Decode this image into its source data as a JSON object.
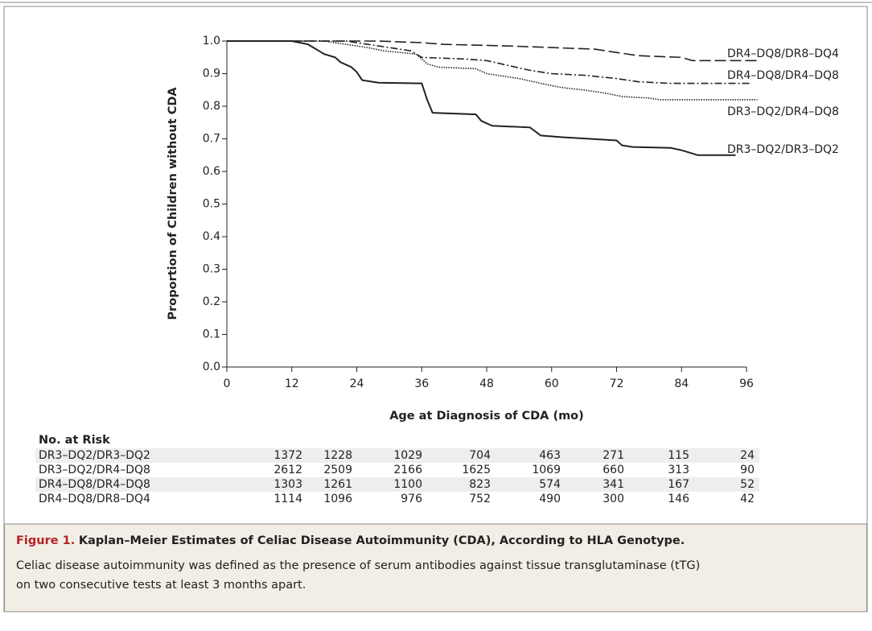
{
  "chart_data": {
    "type": "line",
    "y_label": "Proportion of Children without CDA",
    "x_label": "Age at Diagnosis of CDA (mo)",
    "xlim": [
      0,
      96
    ],
    "xticks": [
      0,
      12,
      24,
      36,
      48,
      60,
      72,
      84,
      96
    ],
    "ylim": [
      0,
      1
    ],
    "yticks": [
      {
        "value": 0,
        "label": "0.0"
      },
      {
        "value": 0.1,
        "label": "0.1"
      },
      {
        "value": 0.2,
        "label": "0.2"
      },
      {
        "value": 0.3,
        "label": "0.3"
      },
      {
        "value": 0.4,
        "label": "0.4"
      },
      {
        "value": 0.5,
        "label": "0.5"
      },
      {
        "value": 0.6,
        "label": "0.6"
      },
      {
        "value": 0.7,
        "label": "0.7"
      },
      {
        "value": 0.8,
        "label": "0.8"
      },
      {
        "value": 0.9,
        "label": "0.9"
      },
      {
        "value": 1,
        "label": "1.0"
      }
    ],
    "series": [
      {
        "name": "DR4–DQ8/DR8–DQ4",
        "color": "#222222",
        "dash": "dashed",
        "x": [
          0,
          28,
          36,
          40,
          52,
          60,
          68,
          72,
          76,
          84,
          86,
          98
        ],
        "values": [
          1,
          1,
          0.995,
          0.99,
          0.985,
          0.98,
          0.975,
          0.965,
          0.955,
          0.95,
          0.94,
          0.94
        ]
      },
      {
        "name": "DR4–DQ8/DR4–DQ8",
        "color": "#222222",
        "dash": "dashdot",
        "x": [
          0,
          22,
          26,
          30,
          34,
          36,
          44,
          48,
          52,
          56,
          60,
          66,
          72,
          76,
          82,
          97
        ],
        "values": [
          1,
          1,
          0.99,
          0.98,
          0.97,
          0.95,
          0.945,
          0.94,
          0.925,
          0.91,
          0.9,
          0.895,
          0.885,
          0.875,
          0.87,
          0.87
        ]
      },
      {
        "name": "DR3–DQ2/DR4–DQ8",
        "color": "#222222",
        "dash": "dotted",
        "x": [
          0,
          18,
          22,
          26,
          29,
          35,
          37,
          39,
          46,
          48,
          54,
          58,
          61,
          63,
          66,
          70,
          73,
          78,
          80,
          98
        ],
        "values": [
          1,
          1,
          0.99,
          0.98,
          0.97,
          0.96,
          0.93,
          0.92,
          0.915,
          0.9,
          0.885,
          0.87,
          0.86,
          0.855,
          0.85,
          0.84,
          0.83,
          0.825,
          0.82,
          0.82
        ]
      },
      {
        "name": "DR3–DQ2/DR3–DQ2",
        "color": "#222222",
        "dash": "solid",
        "x": [
          0,
          12,
          15,
          17,
          18,
          20,
          21,
          23,
          24,
          25,
          28,
          36,
          37,
          38,
          46,
          47,
          49,
          56,
          58,
          62,
          72,
          73,
          75,
          82,
          84,
          86,
          87,
          94
        ],
        "values": [
          1,
          1,
          0.99,
          0.97,
          0.96,
          0.95,
          0.935,
          0.92,
          0.905,
          0.88,
          0.872,
          0.87,
          0.82,
          0.78,
          0.775,
          0.755,
          0.74,
          0.735,
          0.71,
          0.705,
          0.695,
          0.68,
          0.675,
          0.672,
          0.665,
          0.655,
          0.65,
          0.65
        ]
      }
    ]
  },
  "risk_table": {
    "title": "No. at Risk",
    "rows": [
      [
        "DR3–DQ2/DR3–DQ2",
        "1372",
        "1228",
        "1029",
        "704",
        "463",
        "271",
        "115",
        "24"
      ],
      [
        "DR3–DQ2/DR4–DQ8",
        "2612",
        "2509",
        "2166",
        "1625",
        "1069",
        "660",
        "313",
        "90"
      ],
      [
        "DR4–DQ8/DR4–DQ8",
        "1303",
        "1261",
        "1100",
        "823",
        "574",
        "341",
        "167",
        "52"
      ],
      [
        "DR4–DQ8/DR8–DQ4",
        "1114",
        "1096",
        "976",
        "752",
        "490",
        "300",
        "146",
        "42"
      ]
    ]
  },
  "caption": {
    "label": "Figure 1.",
    "title": "Kaplan–Meier Estimates of Celiac Disease Autoimmunity (CDA), According to HLA Genotype.",
    "lines": [
      "Celiac disease autoimmunity was defined as the presence of serum antibodies against tissue transglutaminase (tTG)",
      "on two consecutive tests at least 3 months apart."
    ]
  }
}
